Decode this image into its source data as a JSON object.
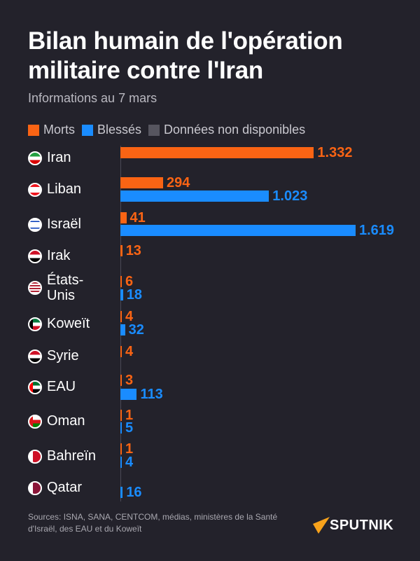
{
  "title": "Bilan humain de l'opération militaire contre l'Iran",
  "subtitle": "Informations au 7 mars",
  "legend": [
    {
      "label": "Morts",
      "color": "#fa6414"
    },
    {
      "label": "Blessés",
      "color": "#1a8cff"
    },
    {
      "label": "Données non disponibles",
      "color": "#56555f"
    }
  ],
  "sources": "Sources: ISNA, SANA, CENTCOM, médias, ministères de la Santé d'Israël, des EAU et du Koweït",
  "logo": "SPUTNIK",
  "chart_data": {
    "type": "bar",
    "orientation": "horizontal",
    "categories": [
      "Iran",
      "Liban",
      "Israël",
      "Irak",
      "États-Unis",
      "Koweït",
      "Syrie",
      "EAU",
      "Oman",
      "Bahreïn",
      "Qatar"
    ],
    "category_labels": [
      "Iran",
      "Liban",
      "Israël",
      "Irak",
      "États-\nUnis",
      "Koweït",
      "Syrie",
      "EAU",
      "Oman",
      "Bahreïn",
      "Qatar"
    ],
    "series": [
      {
        "name": "Morts",
        "color": "#fa6414",
        "values": [
          1332,
          294,
          41,
          13,
          6,
          4,
          4,
          3,
          1,
          1,
          null
        ],
        "labels": [
          "1.332",
          "294",
          "41",
          "13",
          "6",
          "4",
          "4",
          "3",
          "1",
          "1",
          null
        ]
      },
      {
        "name": "Blessés",
        "color": "#1a8cff",
        "values": [
          null,
          1023,
          1619,
          null,
          18,
          32,
          null,
          113,
          5,
          4,
          16
        ],
        "labels": [
          null,
          "1.023",
          "1.619",
          null,
          "18",
          "32",
          null,
          "113",
          "5",
          "4",
          "16"
        ]
      }
    ],
    "grid": false,
    "legend_position": "top"
  }
}
